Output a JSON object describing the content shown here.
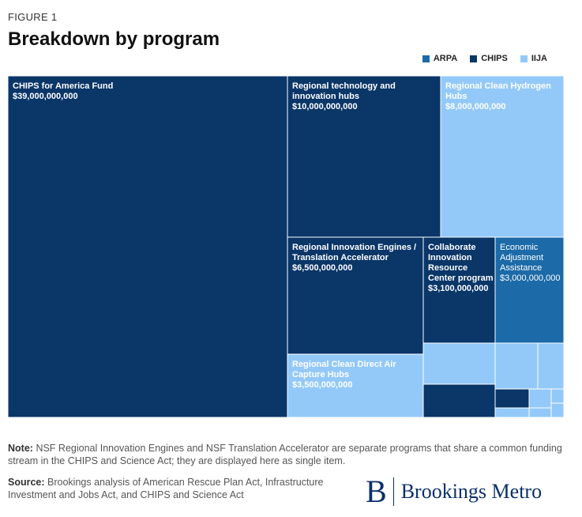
{
  "figure_label": "FIGURE 1",
  "title": "Breakdown by program",
  "legend": [
    {
      "label": "ARPA",
      "color": "#1c6aa8"
    },
    {
      "label": "CHIPS",
      "color": "#0a3668"
    },
    {
      "label": "IIJA",
      "color": "#93c9f8"
    }
  ],
  "chart_data": {
    "type": "treemap",
    "items": [
      {
        "label": "CHIPS for America Fund",
        "value_label": "$39,000,000,000",
        "value": 39000000000,
        "group": "CHIPS"
      },
      {
        "label": "Regional technology and innovation hubs",
        "value_label": "$10,000,000,000",
        "value": 10000000000,
        "group": "CHIPS"
      },
      {
        "label": "Regional Clean Hydrogen Hubs",
        "value_label": "$8,000,000,000",
        "value": 8000000000,
        "group": "IIJA"
      },
      {
        "label": "Regional Innovation Engines / Translation Accelerator",
        "value_label": "$6,500,000,000",
        "value": 6500000000,
        "group": "CHIPS"
      },
      {
        "label": "Collaborate Innovation Resource Center program",
        "value_label": "$3,100,000,000",
        "value": 3100000000,
        "group": "CHIPS"
      },
      {
        "label": "Economic Adjustment Assistance",
        "value_label": "$3,000,000,000",
        "value": 3000000000,
        "group": "ARPA"
      },
      {
        "label": "Regional Clean Direct Air Capture Hubs",
        "value_label": "$3,500,000,000",
        "value": 3500000000,
        "group": "IIJA"
      },
      {
        "label": "",
        "value_label": "",
        "group": "IIJA"
      },
      {
        "label": "",
        "value_label": "",
        "group": "CHIPS"
      },
      {
        "label": "",
        "value_label": "",
        "group": "IIJA"
      },
      {
        "label": "",
        "value_label": "",
        "group": "IIJA"
      },
      {
        "label": "",
        "value_label": "",
        "group": "CHIPS"
      },
      {
        "label": "",
        "value_label": "",
        "group": "IIJA"
      },
      {
        "label": "",
        "value_label": "",
        "group": "IIJA"
      },
      {
        "label": "",
        "value_label": "",
        "group": "IIJA"
      },
      {
        "label": "",
        "value_label": "",
        "group": "IIJA"
      },
      {
        "label": "",
        "value_label": "",
        "group": "IIJA"
      }
    ]
  },
  "note_label": "Note:",
  "note_text": "NSF Regional Innovation Engines and NSF Translation Accelerator are separate programs that share a common funding stream in the CHIPS and Science Act; they are displayed here as single item.",
  "source_label": "Source:",
  "source_text": "Brookings analysis of American Rescue Plan Act, Infrastructure Investment and Jobs Act, and CHIPS and Science Act",
  "logo_mark": "B",
  "logo_text": "Brookings Metro"
}
